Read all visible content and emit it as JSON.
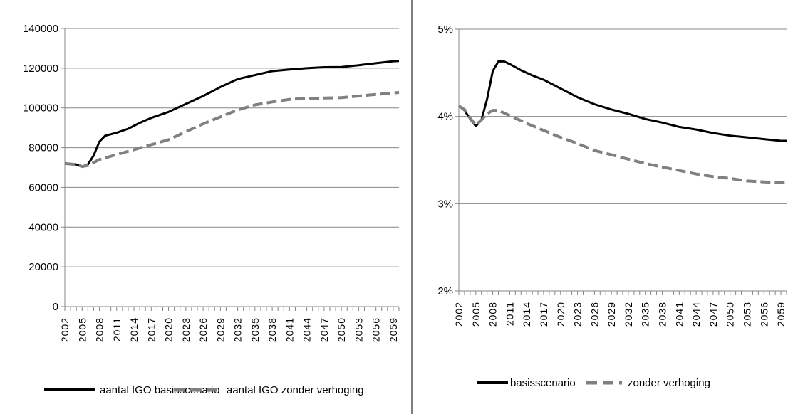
{
  "chart_data": [
    {
      "type": "line",
      "title": "",
      "xlabel": "",
      "ylabel": "",
      "x_start": 2002,
      "x_end": 2060,
      "x_tick_labels": [
        "2002",
        "2005",
        "2008",
        "2011",
        "2014",
        "2017",
        "2020",
        "2023",
        "2026",
        "2029",
        "2032",
        "2035",
        "2038",
        "2041",
        "2044",
        "2047",
        "2050",
        "2053",
        "2056",
        "2059"
      ],
      "y_ticks": [
        0,
        20000,
        40000,
        60000,
        80000,
        100000,
        120000,
        140000
      ],
      "y_tick_labels": [
        "0",
        "20000",
        "40000",
        "60000",
        "80000",
        "100000",
        "120000",
        "140000"
      ],
      "ylim": [
        0,
        140000
      ],
      "grid": true,
      "legend_position": "bottom",
      "series": [
        {
          "name": "aantal IGO basisscenario",
          "color": "#000000",
          "style": "solid",
          "points": [
            [
              2002,
              72000
            ],
            [
              2004,
              71500
            ],
            [
              2005,
              70500
            ],
            [
              2006,
              71500
            ],
            [
              2007,
              76000
            ],
            [
              2008,
              83000
            ],
            [
              2009,
              86000
            ],
            [
              2011,
              87500
            ],
            [
              2013,
              89500
            ],
            [
              2015,
              92500
            ],
            [
              2017,
              95000
            ],
            [
              2020,
              98000
            ],
            [
              2023,
              102000
            ],
            [
              2026,
              106000
            ],
            [
              2029,
              110500
            ],
            [
              2032,
              114500
            ],
            [
              2035,
              116500
            ],
            [
              2038,
              118500
            ],
            [
              2041,
              119300
            ],
            [
              2044,
              120000
            ],
            [
              2047,
              120500
            ],
            [
              2050,
              120600
            ],
            [
              2053,
              121500
            ],
            [
              2056,
              122500
            ],
            [
              2059,
              123500
            ],
            [
              2060,
              123600
            ]
          ]
        },
        {
          "name": "aantal IGO zonder verhoging",
          "color": "#808080",
          "style": "dashed",
          "points": [
            [
              2002,
              72000
            ],
            [
              2004,
              71500
            ],
            [
              2005,
              70500
            ],
            [
              2006,
              71000
            ],
            [
              2008,
              74000
            ],
            [
              2011,
              76500
            ],
            [
              2014,
              79000
            ],
            [
              2017,
              81500
            ],
            [
              2020,
              84000
            ],
            [
              2023,
              88000
            ],
            [
              2026,
              92000
            ],
            [
              2029,
              95500
            ],
            [
              2032,
              99000
            ],
            [
              2035,
              101500
            ],
            [
              2038,
              103000
            ],
            [
              2041,
              104300
            ],
            [
              2044,
              104800
            ],
            [
              2047,
              105000
            ],
            [
              2050,
              105200
            ],
            [
              2053,
              106000
            ],
            [
              2056,
              106800
            ],
            [
              2059,
              107500
            ],
            [
              2060,
              107800
            ]
          ]
        }
      ]
    },
    {
      "type": "line",
      "title": "",
      "xlabel": "",
      "ylabel": "",
      "x_start": 2002,
      "x_end": 2060,
      "x_tick_labels": [
        "2002",
        "2005",
        "2008",
        "2011",
        "2014",
        "2017",
        "2020",
        "2023",
        "2026",
        "2029",
        "2032",
        "2035",
        "2038",
        "2041",
        "2044",
        "2047",
        "2050",
        "2053",
        "2056",
        "2059"
      ],
      "y_ticks": [
        2,
        3,
        4,
        5
      ],
      "y_tick_labels": [
        "2%",
        "3%",
        "4%",
        "5%"
      ],
      "ylim": [
        2,
        5
      ],
      "grid": true,
      "legend_position": "bottom",
      "series": [
        {
          "name": "basisscenario",
          "color": "#000000",
          "style": "solid",
          "points": [
            [
              2002,
              4.12
            ],
            [
              2003,
              4.07
            ],
            [
              2004,
              3.97
            ],
            [
              2005,
              3.89
            ],
            [
              2006,
              3.96
            ],
            [
              2007,
              4.2
            ],
            [
              2008,
              4.52
            ],
            [
              2009,
              4.63
            ],
            [
              2010,
              4.63
            ],
            [
              2011,
              4.6
            ],
            [
              2013,
              4.53
            ],
            [
              2015,
              4.47
            ],
            [
              2017,
              4.42
            ],
            [
              2020,
              4.32
            ],
            [
              2023,
              4.22
            ],
            [
              2026,
              4.14
            ],
            [
              2029,
              4.08
            ],
            [
              2032,
              4.03
            ],
            [
              2035,
              3.97
            ],
            [
              2038,
              3.93
            ],
            [
              2041,
              3.88
            ],
            [
              2044,
              3.85
            ],
            [
              2047,
              3.81
            ],
            [
              2050,
              3.78
            ],
            [
              2053,
              3.76
            ],
            [
              2056,
              3.74
            ],
            [
              2059,
              3.72
            ],
            [
              2060,
              3.72
            ]
          ]
        },
        {
          "name": "zonder verhoging",
          "color": "#808080",
          "style": "dashed",
          "points": [
            [
              2002,
              4.12
            ],
            [
              2003,
              4.08
            ],
            [
              2004,
              3.98
            ],
            [
              2005,
              3.9
            ],
            [
              2006,
              3.96
            ],
            [
              2007,
              4.03
            ],
            [
              2008,
              4.07
            ],
            [
              2009,
              4.07
            ],
            [
              2011,
              4.01
            ],
            [
              2014,
              3.92
            ],
            [
              2017,
              3.84
            ],
            [
              2020,
              3.76
            ],
            [
              2023,
              3.69
            ],
            [
              2026,
              3.61
            ],
            [
              2029,
              3.56
            ],
            [
              2032,
              3.51
            ],
            [
              2035,
              3.46
            ],
            [
              2038,
              3.42
            ],
            [
              2041,
              3.38
            ],
            [
              2044,
              3.34
            ],
            [
              2047,
              3.31
            ],
            [
              2050,
              3.29
            ],
            [
              2053,
              3.26
            ],
            [
              2056,
              3.25
            ],
            [
              2059,
              3.24
            ],
            [
              2060,
              3.24
            ]
          ]
        }
      ]
    }
  ]
}
